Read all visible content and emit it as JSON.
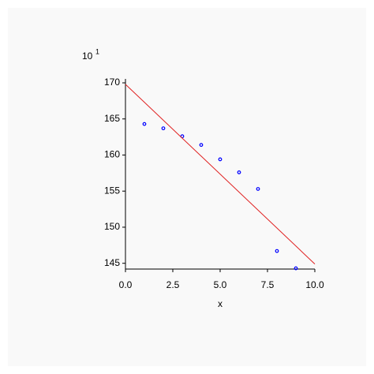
{
  "chart_data": {
    "type": "scatter",
    "multiplier": "10",
    "multiplier_exponent": "1",
    "x_label": "x",
    "xlim": [
      0,
      10
    ],
    "ylim": [
      144.2,
      170
    ],
    "xticks": [
      {
        "value": 0,
        "label": "0.0"
      },
      {
        "value": 2.5,
        "label": "2.5"
      },
      {
        "value": 5,
        "label": "5.0"
      },
      {
        "value": 7.5,
        "label": "7.5"
      },
      {
        "value": 10,
        "label": "10.0"
      }
    ],
    "yticks": [
      145,
      150,
      155,
      160,
      165,
      170
    ],
    "series": [
      {
        "mode": "markers",
        "color": "#0000ff",
        "x": [
          1,
          2,
          3,
          4,
          5,
          6,
          7,
          8,
          9
        ],
        "values": [
          164.3,
          163.7,
          162.6,
          161.4,
          159.4,
          157.6,
          155.3,
          146.7,
          144.3
        ]
      },
      {
        "mode": "line",
        "color": "#e02020",
        "x": [
          0,
          10
        ],
        "values": [
          169.8,
          144.9
        ]
      }
    ]
  }
}
